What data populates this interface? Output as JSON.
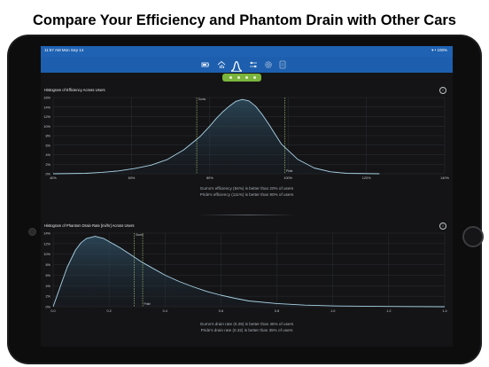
{
  "headline": "Compare Your Efficiency and Phantom Drain with Other Cars",
  "status": {
    "time": "11:57 AM   Mon Sep 14",
    "right": "▾ • 100%"
  },
  "toolbar": {
    "icons": [
      "battery-icon",
      "house-chart-icon",
      "histogram-icon",
      "sliders-icon",
      "gear-icon",
      "document-icon"
    ],
    "active": "histogram-icon"
  },
  "pager": {
    "pages": 4,
    "current": 1
  },
  "efficiency_panel": {
    "title": "Histogram of Efficiency Across Users",
    "caption_line1": "Gumo's efficiency (84%) is better than 20% of users",
    "caption_line2": "Pride's efficiency (111%) is better than 90% of users",
    "markers": [
      {
        "label": "Gumo",
        "x": 84
      },
      {
        "label": "Pride",
        "x": 111
      }
    ]
  },
  "drain_panel": {
    "title": "Histogram of Phantom Drain Rate [mi/hr] Across Users",
    "caption_line1": "Gumo's drain rate (0.29) is better than 45% of users",
    "caption_line2": "Pride's drain rate (0.32) is better than 35% of users",
    "markers": [
      {
        "label": "Gumo",
        "x": 0.29
      },
      {
        "label": "Pride",
        "x": 0.32
      }
    ]
  },
  "chart_data": [
    {
      "type": "area",
      "title": "Histogram of Efficiency Across Users",
      "xlim": [
        40,
        160
      ],
      "ylim": [
        0,
        16
      ],
      "xticks": [
        "40%",
        "60%",
        "80%",
        "100%",
        "120%",
        "140%"
      ],
      "yticks": [
        "0%",
        "2%",
        "4%",
        "6%",
        "8%",
        "10%",
        "12%",
        "14%",
        "16%"
      ],
      "x": [
        40,
        50,
        55,
        60,
        65,
        70,
        75,
        80,
        85,
        88,
        90,
        92,
        94,
        96,
        98,
        100,
        102,
        104,
        106,
        108,
        110,
        115,
        120,
        125,
        130,
        140
      ],
      "y": [
        0,
        0.1,
        0.3,
        0.6,
        1.1,
        1.8,
        3.0,
        5.0,
        7.8,
        10.0,
        11.6,
        13.0,
        14.2,
        15.2,
        15.6,
        15.3,
        14.2,
        12.5,
        10.5,
        8.3,
        6.2,
        3.0,
        1.2,
        0.4,
        0.1,
        0
      ]
    },
    {
      "type": "area",
      "title": "Histogram of Phantom Drain Rate [mi/hr] Across Users",
      "xlim": [
        0,
        1.4
      ],
      "ylim": [
        0,
        14
      ],
      "xticks": [
        "0.0",
        "0.2",
        "0.4",
        "0.6",
        "0.8",
        "1.0",
        "1.2",
        "1.4"
      ],
      "yticks": [
        "0%",
        "2%",
        "4%",
        "6%",
        "8%",
        "10%",
        "12%",
        "14%"
      ],
      "x": [
        0,
        0.02,
        0.05,
        0.08,
        0.1,
        0.12,
        0.15,
        0.18,
        0.2,
        0.24,
        0.28,
        0.32,
        0.36,
        0.4,
        0.45,
        0.5,
        0.55,
        0.6,
        0.65,
        0.7,
        0.8,
        0.9,
        1.0,
        1.2,
        1.4
      ],
      "y": [
        0,
        3.0,
        7.5,
        10.8,
        12.2,
        13.0,
        13.4,
        13.0,
        12.4,
        11.2,
        9.8,
        8.4,
        7.2,
        6.0,
        4.8,
        3.8,
        2.9,
        2.2,
        1.6,
        1.1,
        0.6,
        0.3,
        0.15,
        0.05,
        0
      ]
    }
  ]
}
